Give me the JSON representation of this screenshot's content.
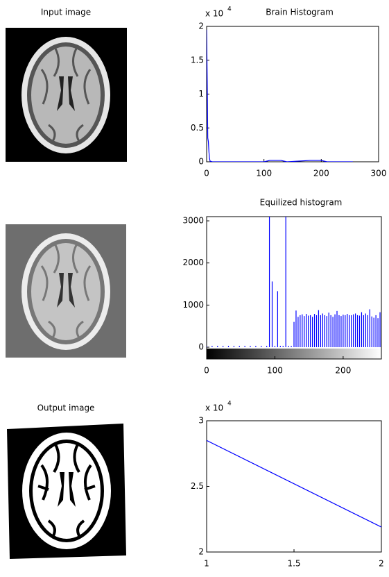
{
  "image_titles": [
    "Input image",
    "Output image"
  ],
  "chart_data": [
    {
      "type": "line",
      "title": "Brain Histogram",
      "y_multiplier": "x 10",
      "y_multiplier_exponent": "4",
      "color": "#0000ff",
      "x": [
        0,
        1,
        2,
        3,
        4,
        5,
        6,
        10,
        50,
        100,
        110,
        130,
        140,
        180,
        200,
        210,
        255
      ],
      "values": [
        1.95,
        1.2,
        0.35,
        0.3,
        0.15,
        0.05,
        0.01,
        0,
        0,
        0,
        0.02,
        0.02,
        0,
        0.02,
        0.02,
        0,
        0
      ],
      "xlim": [
        0,
        300
      ],
      "xticks": [
        0,
        100,
        200,
        300
      ],
      "ylim": [
        0,
        2
      ],
      "yticks": [
        0,
        0.5,
        1,
        1.5,
        2
      ]
    },
    {
      "type": "stem",
      "title": "Equilized histogram",
      "color": "#0000ff",
      "colorbar": true,
      "x": [
        0,
        8,
        16,
        24,
        32,
        40,
        48,
        56,
        64,
        72,
        80,
        88,
        92,
        96,
        100,
        104,
        108,
        112,
        116,
        120,
        124,
        128,
        131,
        134,
        137,
        140,
        143,
        146,
        149,
        152,
        155,
        158,
        161,
        164,
        167,
        170,
        173,
        176,
        179,
        182,
        185,
        188,
        191,
        194,
        197,
        200,
        203,
        206,
        209,
        212,
        215,
        218,
        221,
        224,
        227,
        230,
        233,
        236,
        239,
        242,
        245,
        248,
        251,
        254
      ],
      "values": [
        30,
        30,
        30,
        30,
        30,
        30,
        30,
        30,
        30,
        30,
        30,
        30,
        3100,
        1560,
        30,
        1330,
        30,
        30,
        3100,
        30,
        30,
        600,
        870,
        720,
        760,
        780,
        740,
        790,
        750,
        760,
        720,
        790,
        760,
        880,
        760,
        800,
        760,
        740,
        820,
        760,
        720,
        780,
        860,
        760,
        740,
        770,
        760,
        790,
        760,
        760,
        780,
        800,
        760,
        750,
        830,
        760,
        800,
        760,
        900,
        730,
        700,
        760,
        690,
        830
      ],
      "xlim": [
        0,
        256
      ],
      "xticks": [
        0,
        100,
        200
      ],
      "ylim": [
        -280,
        3100
      ],
      "yticks": [
        0,
        1000,
        2000,
        3000
      ]
    },
    {
      "type": "line",
      "y_multiplier": "x 10",
      "y_multiplier_exponent": "4",
      "color": "#0000ff",
      "x": [
        1,
        2
      ],
      "values": [
        2.85,
        2.19
      ],
      "xlim": [
        1,
        2
      ],
      "xticks": [
        1,
        1.5,
        2
      ],
      "ylim": [
        2,
        3
      ],
      "yticks": [
        2,
        2.5,
        3
      ]
    }
  ]
}
